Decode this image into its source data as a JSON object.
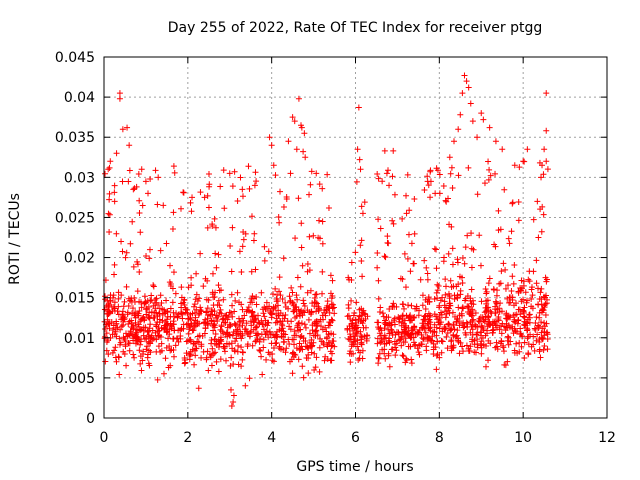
{
  "chart_data": {
    "type": "scatter",
    "title": "Day 255 of 2022, Rate Of TEC Index for receiver ptgg",
    "xlabel": "GPS time / hours",
    "ylabel": "ROTI / TECUs",
    "xlim": [
      0,
      12
    ],
    "ylim": [
      0,
      0.045
    ],
    "x_ticks": [
      "0",
      "2",
      "4",
      "6",
      "8",
      "10",
      "12"
    ],
    "y_ticks": [
      "0",
      "0.005",
      "0.01",
      "0.015",
      "0.02",
      "0.025",
      "0.03",
      "0.035",
      "0.04",
      "0.045"
    ],
    "grid": true,
    "marker": "+",
    "color": "#ff0000",
    "series": [
      {
        "name": "ROTI",
        "segments": [
          {
            "start": 0.0,
            "end": 5.5,
            "min": 0.003,
            "base": 0.0115,
            "spread": 0.005
          },
          {
            "start": 5.8,
            "end": 6.3,
            "min": 0.004,
            "base": 0.011,
            "spread": 0.004
          },
          {
            "start": 6.5,
            "end": 7.9,
            "min": 0.0045,
            "base": 0.011,
            "spread": 0.004
          },
          {
            "start": 7.9,
            "end": 10.6,
            "min": 0.003,
            "base": 0.0125,
            "spread": 0.0055
          }
        ],
        "outliers": [
          [
            0.38,
            0.0405
          ],
          [
            0.38,
            0.0398
          ],
          [
            0.45,
            0.036
          ],
          [
            0.55,
            0.0362
          ],
          [
            0.6,
            0.034
          ],
          [
            0.3,
            0.033
          ],
          [
            0.1,
            0.031
          ],
          [
            0.15,
            0.032
          ],
          [
            0.9,
            0.031
          ],
          [
            1.0,
            0.0295
          ],
          [
            1.1,
            0.0298
          ],
          [
            0.7,
            0.0285
          ],
          [
            1.05,
            0.028
          ],
          [
            3.05,
            0.0015
          ],
          [
            3.08,
            0.002
          ],
          [
            3.1,
            0.0028
          ],
          [
            3.03,
            0.0035
          ],
          [
            3.0,
            0.0305
          ],
          [
            3.3,
            0.0285
          ],
          [
            3.6,
            0.029
          ],
          [
            2.1,
            0.0275
          ],
          [
            2.4,
            0.0275
          ],
          [
            4.5,
            0.0375
          ],
          [
            4.55,
            0.037
          ],
          [
            4.7,
            0.0365
          ],
          [
            4.72,
            0.0362
          ],
          [
            4.78,
            0.0355
          ],
          [
            4.65,
            0.0398
          ],
          [
            4.6,
            0.0335
          ],
          [
            4.75,
            0.0332
          ],
          [
            4.8,
            0.0325
          ],
          [
            3.95,
            0.035
          ],
          [
            4.0,
            0.034
          ],
          [
            4.05,
            0.0315
          ],
          [
            4.4,
            0.0345
          ],
          [
            4.45,
            0.0305
          ],
          [
            6.08,
            0.0387
          ],
          [
            6.05,
            0.0335
          ],
          [
            6.1,
            0.0322
          ],
          [
            6.12,
            0.031
          ],
          [
            6.7,
            0.0333
          ],
          [
            6.9,
            0.0333
          ],
          [
            6.75,
            0.0305
          ],
          [
            6.8,
            0.029
          ],
          [
            7.8,
            0.0295
          ],
          [
            7.9,
            0.028
          ],
          [
            8.6,
            0.0427
          ],
          [
            8.65,
            0.042
          ],
          [
            8.7,
            0.0412
          ],
          [
            8.55,
            0.0405
          ],
          [
            8.75,
            0.0392
          ],
          [
            8.5,
            0.0378
          ],
          [
            8.8,
            0.037
          ],
          [
            8.45,
            0.036
          ],
          [
            9.0,
            0.038
          ],
          [
            9.05,
            0.0372
          ],
          [
            9.2,
            0.0362
          ],
          [
            9.35,
            0.0345
          ],
          [
            9.5,
            0.0335
          ],
          [
            8.35,
            0.0345
          ],
          [
            8.9,
            0.035
          ],
          [
            8.25,
            0.0325
          ],
          [
            8.3,
            0.0312
          ],
          [
            10.1,
            0.0335
          ],
          [
            10.0,
            0.032
          ],
          [
            9.8,
            0.0315
          ],
          [
            10.4,
            0.0318
          ],
          [
            10.55,
            0.0405
          ],
          [
            10.55,
            0.0358
          ],
          [
            10.5,
            0.0335
          ],
          [
            10.55,
            0.032
          ],
          [
            10.45,
            0.0315
          ]
        ]
      }
    ]
  }
}
